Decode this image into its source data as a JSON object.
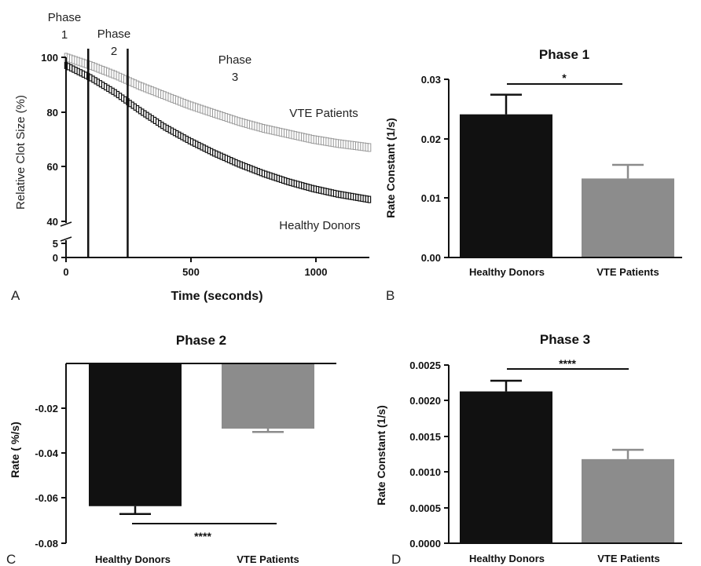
{
  "chart_data": [
    {
      "panel": "A",
      "type": "line",
      "xlabel": "Time (seconds)",
      "ylabel": "Relative Clot  Size (%)",
      "xlim": [
        0,
        1230
      ],
      "x_ticks": [
        "0",
        "500",
        "1000"
      ],
      "y_ticks_upper": [
        "40",
        "60",
        "80",
        "100"
      ],
      "y_ticks_lower": [
        "0",
        "5"
      ],
      "broken_y_axis": true,
      "phase_lines_x": [
        90,
        250
      ],
      "phase_labels": [
        {
          "line1": "Phase",
          "line2": "1"
        },
        {
          "line1": "Phase",
          "line2": "2"
        },
        {
          "line1": "Phase",
          "line2": "3"
        }
      ],
      "series": [
        {
          "name": "VTE Patients",
          "color": "#9a9a9a",
          "x": [
            0,
            100,
            200,
            300,
            400,
            500,
            600,
            700,
            800,
            900,
            1000,
            1100,
            1230
          ],
          "values": [
            100,
            97,
            93.5,
            89.5,
            86,
            82.5,
            79.5,
            76.5,
            74,
            72,
            70,
            68.5,
            67
          ]
        },
        {
          "name": "Healthy Donors",
          "color": "#111111",
          "x": [
            0,
            100,
            200,
            300,
            400,
            500,
            600,
            700,
            800,
            900,
            1000,
            1100,
            1230
          ],
          "values": [
            97,
            92.5,
            87,
            80.5,
            74.5,
            69.5,
            65,
            61,
            57.5,
            54.5,
            52,
            50,
            48
          ]
        }
      ]
    },
    {
      "panel": "B",
      "type": "bar",
      "title": "Phase 1",
      "ylabel": "Rate Constant (1/s)",
      "categories": [
        "Healthy Donors",
        "VTE Patients"
      ],
      "values": [
        0.0241,
        0.0133
      ],
      "errors": [
        0.0033,
        0.0023
      ],
      "colors": [
        "#111111",
        "#8c8c8c"
      ],
      "ylim": [
        0,
        0.03
      ],
      "y_ticks": [
        "0.00",
        "0.01",
        "0.02",
        "0.03"
      ],
      "significance": "*"
    },
    {
      "panel": "C",
      "type": "bar",
      "title": "Phase 2",
      "ylabel": "Rate ( %/s)",
      "categories": [
        "Healthy Donors",
        "VTE Patients"
      ],
      "values": [
        -0.0635,
        -0.029
      ],
      "errors": [
        0.0035,
        0.0015
      ],
      "colors": [
        "#111111",
        "#8c8c8c"
      ],
      "ylim": [
        -0.08,
        0
      ],
      "y_ticks": [
        "-0.02",
        "-0.04",
        "-0.06",
        "-0.08"
      ],
      "significance": "****"
    },
    {
      "panel": "D",
      "type": "bar",
      "title": "Phase 3",
      "ylabel": "Rate Constant (1/s)",
      "categories": [
        "Healthy Donors",
        "VTE Patients"
      ],
      "values": [
        0.00213,
        0.00118
      ],
      "errors": [
        0.00015,
        0.00013
      ],
      "colors": [
        "#111111",
        "#8c8c8c"
      ],
      "ylim": [
        0,
        0.0025
      ],
      "y_ticks": [
        "0.0000",
        "0.0005",
        "0.0010",
        "0.0015",
        "0.0020",
        "0.0025"
      ],
      "significance": "****"
    }
  ]
}
